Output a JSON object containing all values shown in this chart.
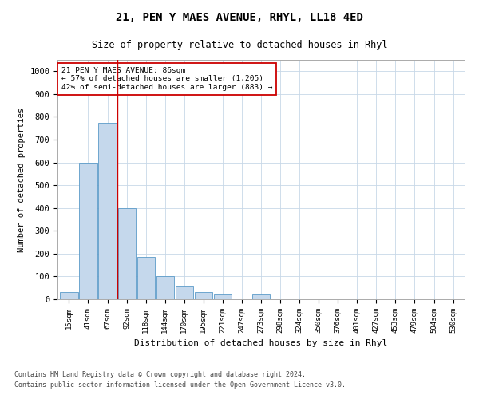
{
  "title": "21, PEN Y MAES AVENUE, RHYL, LL18 4ED",
  "subtitle": "Size of property relative to detached houses in Rhyl",
  "xlabel": "Distribution of detached houses by size in Rhyl",
  "ylabel": "Number of detached properties",
  "bar_labels": [
    "15sqm",
    "41sqm",
    "67sqm",
    "92sqm",
    "118sqm",
    "144sqm",
    "170sqm",
    "195sqm",
    "221sqm",
    "247sqm",
    "273sqm",
    "298sqm",
    "324sqm",
    "350sqm",
    "376sqm",
    "401sqm",
    "427sqm",
    "453sqm",
    "479sqm",
    "504sqm",
    "530sqm"
  ],
  "bar_values": [
    30,
    600,
    775,
    400,
    185,
    100,
    55,
    30,
    20,
    0,
    20,
    0,
    0,
    0,
    0,
    0,
    0,
    0,
    0,
    0,
    0
  ],
  "bar_color": "#c5d8ec",
  "bar_edge_color": "#5a9ac8",
  "vline_x": 2.5,
  "vline_color": "#cc0000",
  "annotation_text": "21 PEN Y MAES AVENUE: 86sqm\n← 57% of detached houses are smaller (1,205)\n42% of semi-detached houses are larger (883) →",
  "annotation_box_color": "#cc0000",
  "ylim": [
    0,
    1050
  ],
  "yticks": [
    0,
    100,
    200,
    300,
    400,
    500,
    600,
    700,
    800,
    900,
    1000
  ],
  "footnote1": "Contains HM Land Registry data © Crown copyright and database right 2024.",
  "footnote2": "Contains public sector information licensed under the Open Government Licence v3.0.",
  "bg_color": "#ffffff",
  "grid_color": "#c8d8e8"
}
